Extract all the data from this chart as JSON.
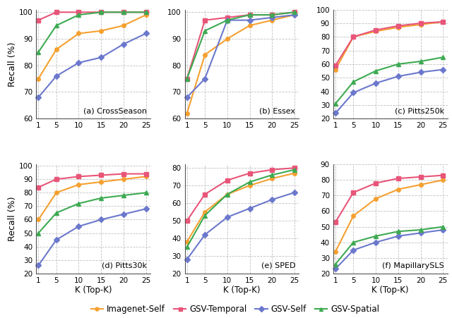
{
  "x": [
    1,
    5,
    10,
    15,
    20,
    25
  ],
  "subplots": [
    {
      "title": "(a) CrossSeason",
      "ylabel": "Recall (%)",
      "ylim": [
        60,
        101
      ],
      "yticks": [
        60,
        70,
        80,
        90,
        100
      ],
      "series": {
        "Imagenet-Self": [
          75,
          86,
          92,
          93,
          95,
          99
        ],
        "GSV-Temporal": [
          97,
          100,
          100,
          100,
          100,
          100
        ],
        "GSV-Self": [
          68,
          76,
          81,
          83,
          88,
          92
        ],
        "GSV-Spatial": [
          85,
          95,
          99,
          100,
          100,
          100
        ]
      }
    },
    {
      "title": "(b) Essex",
      "ylabel": "",
      "ylim": [
        60,
        101
      ],
      "yticks": [
        60,
        70,
        80,
        90,
        100
      ],
      "series": {
        "Imagenet-Self": [
          62,
          84,
          90,
          95,
          97,
          99
        ],
        "GSV-Temporal": [
          75,
          97,
          98,
          99,
          99,
          100
        ],
        "GSV-Self": [
          68,
          75,
          97,
          97,
          98,
          99
        ],
        "GSV-Spatial": [
          75,
          93,
          97,
          99,
          99,
          100
        ]
      }
    },
    {
      "title": "(c) Pitts250k",
      "ylabel": "",
      "ylim": [
        20,
        100
      ],
      "yticks": [
        20,
        30,
        40,
        50,
        60,
        70,
        80,
        90,
        100
      ],
      "series": {
        "Imagenet-Self": [
          56,
          80,
          84,
          87,
          89,
          91
        ],
        "GSV-Temporal": [
          59,
          80,
          85,
          88,
          90,
          91
        ],
        "GSV-Self": [
          24,
          39,
          46,
          51,
          54,
          56
        ],
        "GSV-Spatial": [
          31,
          47,
          55,
          60,
          62,
          65
        ]
      }
    },
    {
      "title": "(d) Pitts30k",
      "ylabel": "Recall (%)",
      "ylim": [
        20,
        101
      ],
      "yticks": [
        20,
        30,
        40,
        50,
        60,
        70,
        80,
        90,
        100
      ],
      "series": {
        "Imagenet-Self": [
          60,
          80,
          86,
          88,
          90,
          92
        ],
        "GSV-Temporal": [
          84,
          90,
          92,
          93,
          94,
          94
        ],
        "GSV-Self": [
          26,
          45,
          55,
          60,
          64,
          68
        ],
        "GSV-Spatial": [
          50,
          65,
          72,
          76,
          78,
          80
        ]
      }
    },
    {
      "title": "(e) SPED",
      "ylabel": "",
      "ylim": [
        20,
        82
      ],
      "yticks": [
        20,
        30,
        40,
        50,
        60,
        70,
        80
      ],
      "series": {
        "Imagenet-Self": [
          38,
          55,
          65,
          70,
          74,
          77
        ],
        "GSV-Temporal": [
          50,
          65,
          73,
          77,
          79,
          80
        ],
        "GSV-Self": [
          28,
          42,
          52,
          57,
          62,
          66
        ],
        "GSV-Spatial": [
          35,
          53,
          65,
          72,
          76,
          79
        ]
      }
    },
    {
      "title": "(f) MapillarySLS",
      "ylabel": "",
      "ylim": [
        20,
        90
      ],
      "yticks": [
        20,
        30,
        40,
        50,
        60,
        70,
        80,
        90
      ],
      "series": {
        "Imagenet-Self": [
          34,
          57,
          68,
          74,
          77,
          80
        ],
        "GSV-Temporal": [
          53,
          72,
          78,
          81,
          82,
          83
        ],
        "GSV-Self": [
          23,
          35,
          40,
          44,
          46,
          48
        ],
        "GSV-Spatial": [
          26,
          40,
          44,
          47,
          48,
          50
        ]
      }
    }
  ],
  "series_styles": {
    "Imagenet-Self": {
      "color": "#F5A030",
      "marker": "o",
      "linestyle": "-"
    },
    "GSV-Temporal": {
      "color": "#E85578",
      "marker": "s",
      "linestyle": "-"
    },
    "GSV-Self": {
      "color": "#6B78CC",
      "marker": "D",
      "linestyle": "-"
    },
    "GSV-Spatial": {
      "color": "#3DAA52",
      "marker": "^",
      "linestyle": "-"
    }
  },
  "legend_order": [
    "Imagenet-Self",
    "GSV-Temporal",
    "GSV-Self",
    "GSV-Spatial"
  ],
  "xlabel": "K (Top-K)",
  "figsize": [
    6.4,
    4.51
  ],
  "dpi": 100
}
